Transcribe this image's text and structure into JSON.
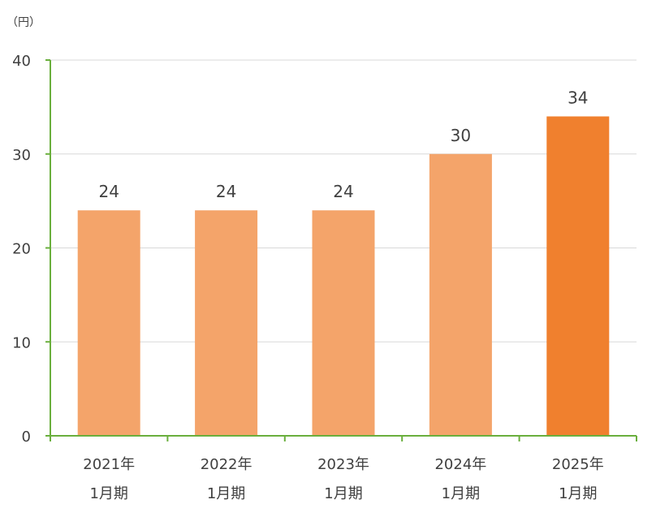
{
  "chart_data": {
    "type": "bar",
    "unit_label": "（円）",
    "categories": [
      {
        "year": "2021年",
        "period": "1月期"
      },
      {
        "year": "2022年",
        "period": "1月期"
      },
      {
        "year": "2023年",
        "period": "1月期"
      },
      {
        "year": "2024年",
        "period": "1月期"
      },
      {
        "year": "2025年",
        "period": "1月期"
      }
    ],
    "values": [
      24,
      24,
      24,
      30,
      34
    ],
    "data_labels": [
      "24",
      "24",
      "24",
      "30",
      "34"
    ],
    "y_ticks": [
      "0",
      "10",
      "20",
      "30",
      "40"
    ],
    "ylim": [
      0,
      40
    ],
    "grid": true,
    "colors": {
      "bar": "#F4A46A",
      "highlight_bar": "#F0802E",
      "axis": "#6AAF3D",
      "grid": "#D9D9D9"
    }
  }
}
